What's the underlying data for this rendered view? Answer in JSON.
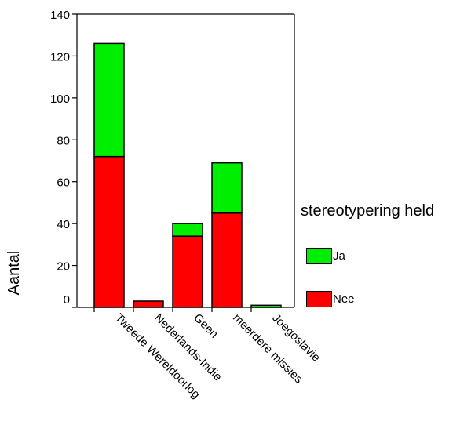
{
  "chart_data": {
    "type": "bar",
    "stacked": true,
    "categories": [
      "Tweede Wereldoorlog",
      "Nederlands-Indie",
      "Geen",
      "meerdere missies",
      "Joegoslavie"
    ],
    "series": [
      {
        "name": "Nee",
        "color": "#ff0000",
        "values": [
          72,
          3,
          34,
          45,
          0
        ]
      },
      {
        "name": "Ja",
        "color": "#00ee00",
        "values": [
          54,
          0,
          6,
          24,
          1
        ]
      }
    ],
    "ylabel": "Aantal",
    "xlabel": "",
    "ylim": [
      0,
      140
    ],
    "yticks": [
      0,
      20,
      40,
      60,
      80,
      100,
      120,
      140
    ],
    "grid": false,
    "legend": {
      "title": "stereotypering held",
      "placement": "right",
      "items": [
        {
          "label": "Ja",
          "color": "#00ee00"
        },
        {
          "label": "Nee",
          "color": "#ff0000"
        }
      ]
    }
  }
}
